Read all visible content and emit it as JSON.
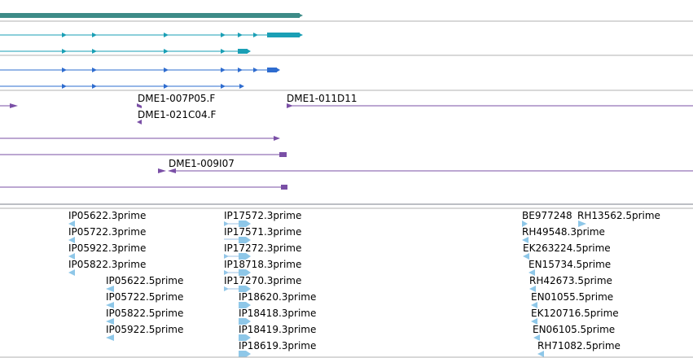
{
  "colors": {
    "gene_bar": "#3d8b87",
    "transcript_teal": "#1a9fb5",
    "transcript_blue": "#2e6ccf",
    "clone": "#7a4fa6",
    "est": "#8ec7e8",
    "est_line": "#9ec3e6",
    "divider": "#b0b0b0",
    "divider_dark": "#7a7f8a"
  },
  "tracks": {
    "clones": {
      "labels": [
        "DME1-007P05.F",
        "DME1-021C04.F",
        "DME1-011D11",
        "DME1-009I07"
      ]
    },
    "est_left": {
      "labels": [
        "IP05622.3prime",
        "IP05722.3prime",
        "IP05922.3prime",
        "IP05822.3prime",
        "IP05622.5prime",
        "IP05722.5prime",
        "IP05822.5prime",
        "IP05922.5prime"
      ]
    },
    "est_middle": {
      "labels": [
        "IP17572.3prime",
        "IP17571.3prime",
        "IP17272.3prime",
        "IP18718.3prime",
        "IP17270.3prime",
        "IP18620.3prime",
        "IP18418.3prime",
        "IP18419.3prime",
        "IP18619.3prime"
      ]
    },
    "est_right": {
      "labels": [
        "BE977248",
        "RH13562.5prime",
        "RH49548.3prime",
        "EK263224.5prime",
        "EN15734.5prime",
        "RH42673.5prime",
        "EN01055.5prime",
        "EK120716.5prime",
        "EN06105.5prime",
        "RH71082.5prime"
      ]
    }
  }
}
